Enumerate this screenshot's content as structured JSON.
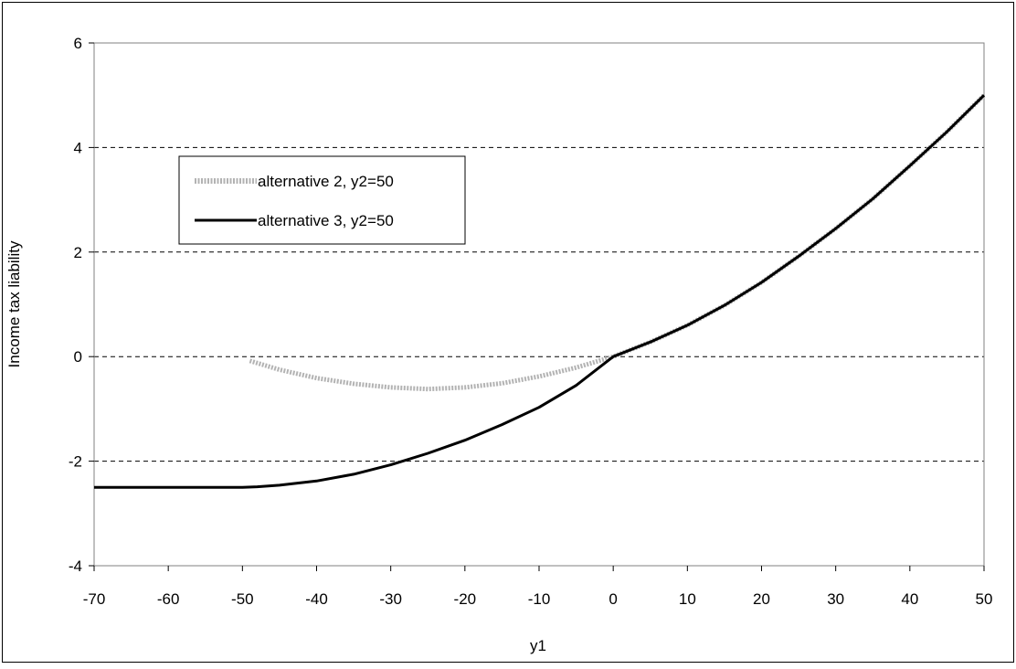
{
  "chart_data": {
    "type": "line",
    "title": "",
    "xlabel": "y1",
    "ylabel": "Income tax liability",
    "xlim": [
      -70,
      50
    ],
    "ylim": [
      -4,
      6
    ],
    "x_ticks": [
      -70,
      -60,
      -50,
      -40,
      -30,
      -20,
      -10,
      0,
      10,
      20,
      30,
      40,
      50
    ],
    "y_ticks": [
      -4,
      -2,
      0,
      2,
      4,
      6
    ],
    "grid": "horizontal dashed",
    "legend_position": "upper-left",
    "series": [
      {
        "name": "alternative 2, y2=50",
        "color": "#b3b3b3",
        "points": [
          [
            -49,
            -0.08
          ],
          [
            -45,
            -0.25
          ],
          [
            -40,
            -0.41
          ],
          [
            -35,
            -0.52
          ],
          [
            -30,
            -0.59
          ],
          [
            -25,
            -0.62
          ],
          [
            -20,
            -0.59
          ],
          [
            -15,
            -0.51
          ],
          [
            -10,
            -0.38
          ],
          [
            -5,
            -0.21
          ],
          [
            0,
            0
          ],
          [
            5,
            0.28
          ],
          [
            10,
            0.6
          ],
          [
            15,
            0.98
          ],
          [
            20,
            1.42
          ],
          [
            25,
            1.92
          ],
          [
            30,
            2.45
          ],
          [
            35,
            3.02
          ],
          [
            40,
            3.65
          ],
          [
            45,
            4.3
          ],
          [
            50,
            5.0
          ]
        ]
      },
      {
        "name": "alternative 3, y2=50",
        "color": "#000000",
        "points": [
          [
            -70,
            -2.5
          ],
          [
            -60,
            -2.5
          ],
          [
            -50,
            -2.5
          ],
          [
            -48,
            -2.49
          ],
          [
            -45,
            -2.46
          ],
          [
            -40,
            -2.38
          ],
          [
            -35,
            -2.25
          ],
          [
            -30,
            -2.07
          ],
          [
            -25,
            -1.85
          ],
          [
            -20,
            -1.6
          ],
          [
            -15,
            -1.3
          ],
          [
            -10,
            -0.97
          ],
          [
            -5,
            -0.55
          ],
          [
            0,
            0
          ],
          [
            5,
            0.28
          ],
          [
            10,
            0.6
          ],
          [
            15,
            0.98
          ],
          [
            20,
            1.42
          ],
          [
            25,
            1.92
          ],
          [
            30,
            2.45
          ],
          [
            35,
            3.02
          ],
          [
            40,
            3.65
          ],
          [
            45,
            4.3
          ],
          [
            50,
            5.0
          ]
        ]
      }
    ]
  }
}
